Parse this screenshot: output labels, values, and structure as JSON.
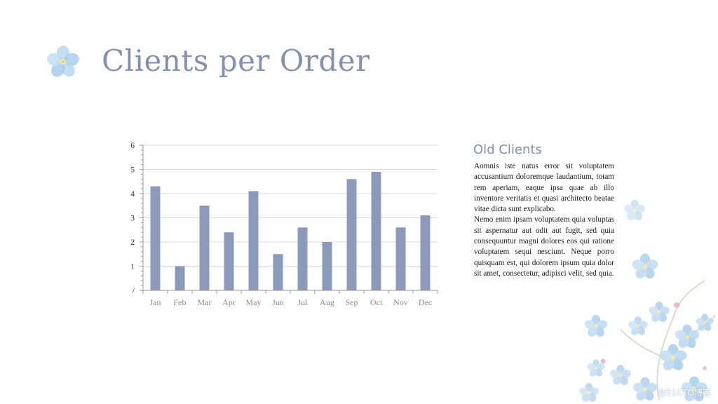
{
  "slide": {
    "title": "Clients per Order",
    "side_heading": "Old Clients",
    "paragraphs": [
      "Aomnis iste natus error sit voluptatem accusantium doloremque laudantium, totam rem aperiam, eaque ipsa quae ab illo inventore veritatis et quasi architecto beatae vitae dicta sunt explicabo.",
      "Nemo enim ipsam voluptatem quia voluptas sit aspernatur aut odit aut fugit, sed quia consequuntur magni dolores eos qui ratione voluptatem sequi nesciunt. Neque porro quisquam est, qui dolorem ipsum quia dolor sit amet, consectetur, adipisci velit, sed quia."
    ],
    "watermark": "@51CTO博客"
  },
  "colors": {
    "title": "#8391ad",
    "bar": "#8b99bb",
    "heading": "#7f90b5",
    "flower": "#a9cdeb"
  },
  "icons": [
    "forget-me-not-flower-icon"
  ],
  "chart_data": {
    "type": "bar",
    "categories": [
      "Jan",
      "Feb",
      "Mar",
      "Apr",
      "May",
      "Jun",
      "Jul",
      "Aug",
      "Sep",
      "Oct",
      "Nov",
      "Dec"
    ],
    "values": [
      4.3,
      1.0,
      3.5,
      2.4,
      4.1,
      1.5,
      2.6,
      2.0,
      4.6,
      4.9,
      2.6,
      3.1
    ],
    "ylim": [
      0,
      6
    ],
    "yticks": [
      "/",
      "1",
      "2",
      "3",
      "4",
      "5",
      "6"
    ],
    "grid": true,
    "legend": "none"
  }
}
